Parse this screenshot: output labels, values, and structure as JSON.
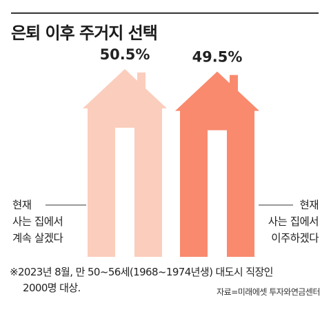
{
  "title": "은퇴 이후 주거지 선택",
  "chart_data": {
    "type": "bar",
    "categories": [
      "현재 사는 집에서 계속 살겠다",
      "현재 사는 집에서 이주하겠다"
    ],
    "values": [
      50.5,
      49.5
    ],
    "value_labels": [
      "50.5%",
      "49.5%"
    ],
    "colors": [
      "#fbcdbc",
      "#f98a6e"
    ],
    "title": "은퇴 이후 주거지 선택",
    "ylim": [
      0,
      100
    ]
  },
  "labels": {
    "left": {
      "line1": "현재",
      "line2": "사는 집에서",
      "line3": "계속 살겠다"
    },
    "right": {
      "line1": "현재",
      "line2": "사는 집에서",
      "line3": "이주하겠다"
    }
  },
  "note": {
    "line1": "※2023년 8월, 만 50~56세(1968~1974년생) 대도시 직장인",
    "line2": "2000명 대상."
  },
  "source": "자료=미래에셋 투자와연금센터",
  "colors": {
    "line": "#333333"
  }
}
